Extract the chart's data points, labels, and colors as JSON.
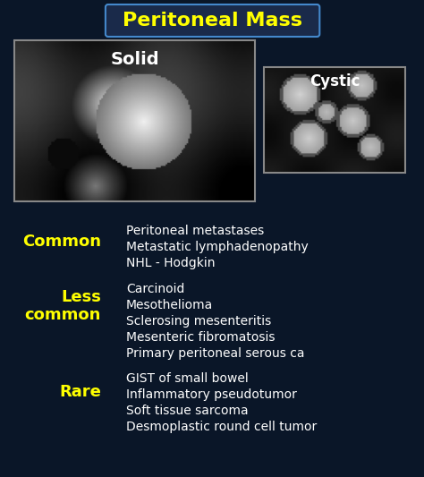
{
  "title": "Peritoneal Mass",
  "background_color": "#0a1628",
  "title_color": "#ffff00",
  "title_bg_color": "#1a2a4a",
  "title_border_color": "#4488cc",
  "label_color": "#ffff00",
  "text_color": "#ffffff",
  "image_label_solid": "Solid",
  "image_label_cystic": "Cystic",
  "sections": [
    {
      "label": "Common",
      "items": [
        "Peritoneal metastases",
        "Metastatic lymphadenopathy",
        "NHL - Hodgkin"
      ]
    },
    {
      "label": "Less\ncommon",
      "items": [
        "Carcinoid",
        "Mesothelioma",
        "Sclerosing mesenteritis",
        "Mesenteric fibromatosis",
        "Primary peritoneal serous ca"
      ]
    },
    {
      "label": "Rare",
      "items": [
        "GIST of small bowel",
        "Inflammatory pseudotumor",
        "Soft tissue sarcoma",
        "Desmoplastic round cell tumor"
      ]
    }
  ]
}
